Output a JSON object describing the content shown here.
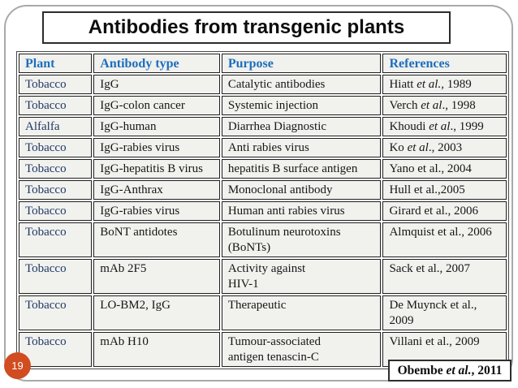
{
  "slide": {
    "title": "Antibodies from transgenic plants",
    "page_number": "19",
    "citation": {
      "pre": "Obembe ",
      "em": "et al.",
      "post": ", 2011"
    }
  },
  "table": {
    "headers": {
      "plant": "Plant",
      "antibody": "Antibody type",
      "purpose": "Purpose",
      "references": "References"
    },
    "rows": [
      {
        "plant": "Tobacco",
        "antibody": "IgG",
        "purpose": "Catalytic antibodies",
        "ref": {
          "pre": "Hiatt ",
          "em": "et al.,",
          "post": " 1989"
        }
      },
      {
        "plant": "Tobacco",
        "antibody": "IgG-colon cancer",
        "purpose": "Systemic injection",
        "ref": {
          "pre": "Verch ",
          "em": "et al",
          "post": "., 1998"
        }
      },
      {
        "plant": "Alfalfa",
        "antibody": "IgG-human",
        "purpose": "Diarrhea Diagnostic",
        "ref": {
          "pre": "Khoudi ",
          "em": "et al",
          "post": "., 1999"
        }
      },
      {
        "plant": "Tobacco",
        "antibody": "IgG-rabies virus",
        "purpose": "Anti rabies virus",
        "ref": {
          "pre": "Ko ",
          "em": "et al",
          "post": "., 2003"
        }
      },
      {
        "plant": "Tobacco",
        "antibody": "IgG-hepatitis B virus",
        "purpose": "hepatitis B surface antigen",
        "ref": {
          "pre": "Yano et al., 2004",
          "em": "",
          "post": ""
        }
      },
      {
        "plant": "Tobacco",
        "antibody": "IgG-Anthrax",
        "purpose": "Monoclonal antibody",
        "ref": {
          "pre": "Hull et al.,2005",
          "em": "",
          "post": ""
        }
      },
      {
        "plant": "Tobacco",
        "antibody": "IgG-rabies virus",
        "purpose": "Human anti rabies virus",
        "ref": {
          "pre": "Girard et al., 2006",
          "em": "",
          "post": ""
        }
      },
      {
        "plant": "Tobacco",
        "antibody": "BoNT antidotes",
        "purpose": "Botulinum neurotoxins\n(BoNTs)",
        "ref": {
          "pre": "Almquist et al., 2006",
          "em": "",
          "post": ""
        }
      },
      {
        "plant": "Tobacco",
        "antibody": "mAb 2F5",
        "purpose": "Activity against\nHIV-1",
        "ref": {
          "pre": "Sack et al., 2007",
          "em": "",
          "post": ""
        }
      },
      {
        "plant": "Tobacco",
        "antibody": "LO-BM2, IgG",
        "purpose": "Therapeutic",
        "ref": {
          "pre": "De Muynck et al.,\n2009",
          "em": "",
          "post": ""
        }
      },
      {
        "plant": "Tobacco",
        "antibody": "mAb H10",
        "purpose": "Tumour-associated\nantigen tenascin-C",
        "ref": {
          "pre": "Villani et al., 2009",
          "em": "",
          "post": ""
        }
      }
    ]
  },
  "colors": {
    "header_text": "#1d6ebd",
    "plant_text": "#1f3864",
    "body_text": "#161616",
    "cell_background": "#f1f1ee",
    "badge_background": "#d14c20",
    "frame_border": "#a9a9a9"
  }
}
